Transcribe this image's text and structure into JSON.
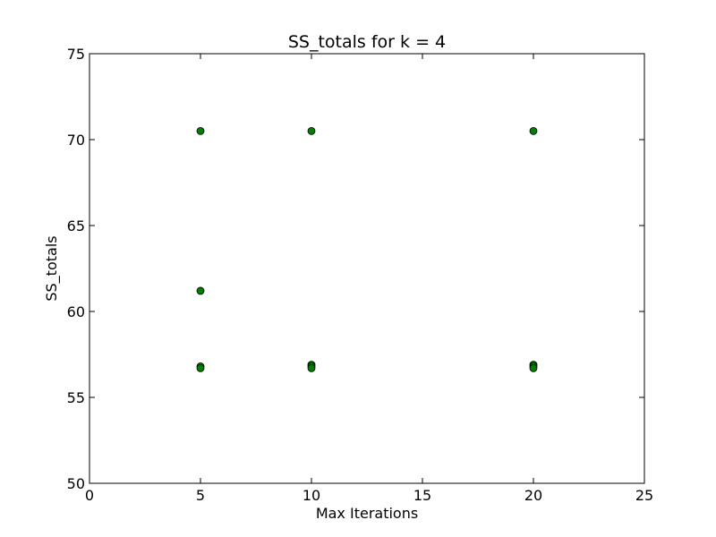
{
  "chart_data": {
    "type": "scatter",
    "title": "SS_totals for k = 4",
    "xlabel": "Max Iterations",
    "ylabel": "SS_totals",
    "xlim": [
      0,
      25
    ],
    "ylim": [
      50,
      75
    ],
    "xticks": [
      "0",
      "5",
      "10",
      "15",
      "20",
      "25"
    ],
    "yticks": [
      "50",
      "55",
      "60",
      "65",
      "70",
      "75"
    ],
    "grid": false,
    "marker_color": "#008000",
    "marker_edge_color": "#000000",
    "points": [
      {
        "x": 5,
        "y": 70.5
      },
      {
        "x": 5,
        "y": 61.2
      },
      {
        "x": 5,
        "y": 56.8
      },
      {
        "x": 5,
        "y": 56.7
      },
      {
        "x": 10,
        "y": 70.5
      },
      {
        "x": 10,
        "y": 56.9
      },
      {
        "x": 10,
        "y": 56.8
      },
      {
        "x": 10,
        "y": 56.7
      },
      {
        "x": 20,
        "y": 70.5
      },
      {
        "x": 20,
        "y": 56.9
      },
      {
        "x": 20,
        "y": 56.8
      },
      {
        "x": 20,
        "y": 56.7
      }
    ]
  }
}
